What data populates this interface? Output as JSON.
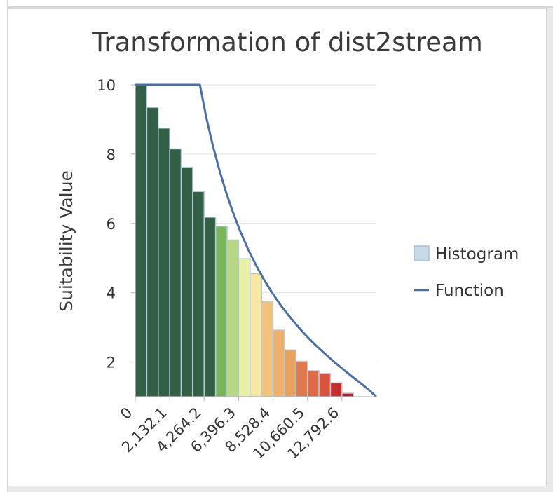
{
  "chart_data": {
    "type": "bar",
    "title": "Transformation of dist2stream",
    "ylabel": "Suitability Value",
    "xlabel": "",
    "xlim": [
      0,
      14924.7
    ],
    "ylim": [
      1,
      10
    ],
    "x_ticks": [
      0,
      2132.1,
      4264.2,
      6396.3,
      8528.4,
      10660.5,
      12792.6
    ],
    "x_tick_labels": [
      "0",
      "2,132.1",
      "4,264.2",
      "6,396.3",
      "8,528.4",
      "10,660.5",
      "12,792.6"
    ],
    "y_ticks": [
      2,
      4,
      6,
      8,
      10
    ],
    "y_tick_labels": [
      "2",
      "4",
      "6",
      "8",
      "10"
    ],
    "grid": "horizontal",
    "legend_position": "right",
    "legend": [
      {
        "label": "Histogram",
        "kind": "box"
      },
      {
        "label": "Function",
        "kind": "line"
      }
    ],
    "histogram": {
      "bin_width": 710.7,
      "values": [
        10,
        9.35,
        8.75,
        8.15,
        7.62,
        6.92,
        6.18,
        5.92,
        5.52,
        4.98,
        4.55,
        3.75,
        2.92,
        2.35,
        2.02,
        1.75,
        1.67,
        1.4,
        1.1
      ],
      "colors": [
        "#335f47",
        "#335f47",
        "#335f47",
        "#335f47",
        "#335f47",
        "#335f47",
        "#335f47",
        "#7ab55c",
        "#b6d884",
        "#e8f0a8",
        "#f6e7a2",
        "#f0c37f",
        "#eeb06d",
        "#eaa25f",
        "#e07a4e",
        "#de6a46",
        "#d95440",
        "#c3302e",
        "#b31e22"
      ],
      "edge_color": "#b7cadb"
    },
    "function": {
      "name": "Function",
      "color": "#4a6fa5",
      "x": [
        0,
        4000,
        4400,
        4800,
        5200,
        5600,
        6000,
        6500,
        7000,
        7500,
        8000,
        8500,
        9000,
        9500,
        10000,
        10500,
        11000,
        11500,
        12000,
        12500,
        13000,
        13500,
        14000,
        14500,
        14924.7
      ],
      "y": [
        10,
        10,
        9.05,
        8.25,
        7.55,
        6.93,
        6.38,
        5.77,
        5.24,
        4.77,
        4.35,
        3.98,
        3.64,
        3.34,
        3.06,
        2.8,
        2.56,
        2.34,
        2.13,
        1.93,
        1.74,
        1.55,
        1.37,
        1.18,
        1
      ]
    }
  }
}
